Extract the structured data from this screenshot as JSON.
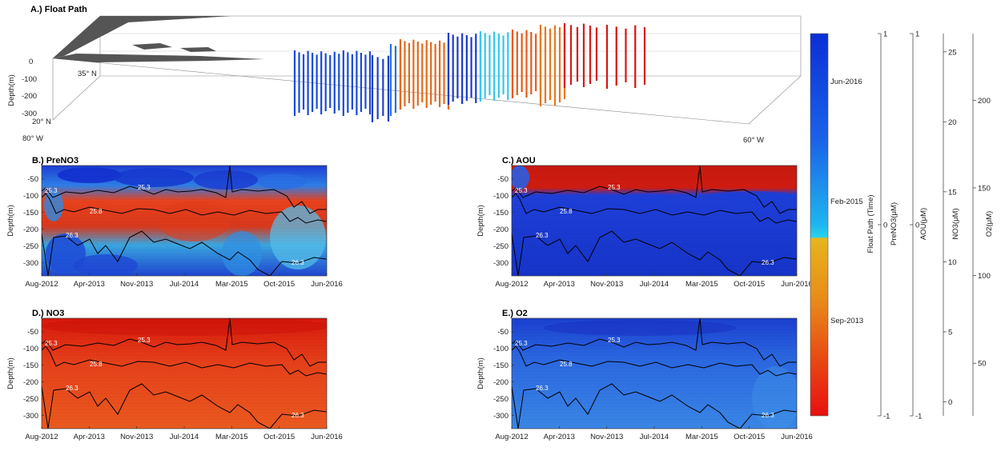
{
  "chart_data": [
    {
      "type": "scatter",
      "title": "A.) Float Path",
      "ylabel": "Depth(m)",
      "y_ticks": [
        "0",
        "-100",
        "-200",
        "-300"
      ],
      "lat_ticks": [
        "35° N",
        "20° N"
      ],
      "lon_ticks": [
        "80° W",
        "60° W"
      ],
      "x_range_deg_W": [
        80,
        60
      ],
      "note": "Vertical profile columns coloured by time along float track"
    },
    {
      "type": "heatmap",
      "title": "B.) PreNO3",
      "ylabel": "Depth(m)",
      "x_ticks": [
        "Aug-2012",
        "Apr-2013",
        "Nov-2013",
        "Jul-2014",
        "Mar-2015",
        "Oct-2015",
        "Jun-2016"
      ],
      "y_ticks": [
        "-50",
        "-100",
        "-150",
        "-200",
        "-250",
        "-300"
      ],
      "ylim": [
        -340,
        -10
      ],
      "contour_labels": [
        "25.3",
        "25.8",
        "26.3"
      ],
      "colormap": "jet"
    },
    {
      "type": "heatmap",
      "title": "C.) AOU",
      "ylabel": "Depth(m)",
      "x_ticks": [
        "Aug-2012",
        "Apr-2013",
        "Nov-2013",
        "Jul-2014",
        "Mar-2015",
        "Oct-2015",
        "Jun-2016"
      ],
      "y_ticks": [
        "-50",
        "-100",
        "-150",
        "-200",
        "-250",
        "-300"
      ],
      "ylim": [
        -340,
        -10
      ],
      "contour_labels": [
        "25.3",
        "25.8",
        "26.3"
      ],
      "colormap": "jet"
    },
    {
      "type": "heatmap",
      "title": "D.) NO3",
      "ylabel": "Depth(m)",
      "x_ticks": [
        "Aug-2012",
        "Apr-2013",
        "Nov-2013",
        "Jul-2014",
        "Mar-2015",
        "Oct-2015",
        "Jun-2016"
      ],
      "y_ticks": [
        "-50",
        "-100",
        "-150",
        "-200",
        "-250",
        "-300"
      ],
      "ylim": [
        -340,
        -10
      ],
      "contour_labels": [
        "25.3",
        "25.8",
        "26.3"
      ],
      "colormap": "red"
    },
    {
      "type": "heatmap",
      "title": "E.) O2",
      "ylabel": "Depth(m)",
      "x_ticks": [
        "Aug-2012",
        "Apr-2013",
        "Nov-2013",
        "Jul-2014",
        "Mar-2015",
        "Oct-2015",
        "Jun-2016"
      ],
      "y_ticks": [
        "-50",
        "-100",
        "-150",
        "-200",
        "-250",
        "-300"
      ],
      "ylim": [
        -340,
        -10
      ],
      "contour_labels": [
        "25.3",
        "25.8",
        "26.3"
      ],
      "colormap": "blue"
    }
  ],
  "colorbar": {
    "time_ticks": [
      "Jun-2016",
      "Feb-2015",
      "Sep-2013"
    ],
    "colors": {
      "top": "#0a2fd8",
      "mid_upper": "#16c4ee",
      "mid": "#e0b020",
      "bottom": "#e81010"
    }
  },
  "axes": [
    {
      "label": "Float Path (Time)",
      "ticks": []
    },
    {
      "label": "PreNO3(μM)",
      "ticks": [
        "1",
        "0",
        "-1"
      ]
    },
    {
      "label": "AOU(μM)",
      "ticks": [
        "1",
        "0",
        "-1"
      ]
    },
    {
      "label": "NO3(μM)",
      "ticks": [
        "25",
        "20",
        "15",
        "10",
        "5",
        "0"
      ],
      "range": [
        -1,
        26.3
      ]
    },
    {
      "label": "O2(μM)",
      "ticks": [
        "200",
        "150",
        "100",
        "50"
      ],
      "range": [
        20,
        238
      ]
    }
  ]
}
